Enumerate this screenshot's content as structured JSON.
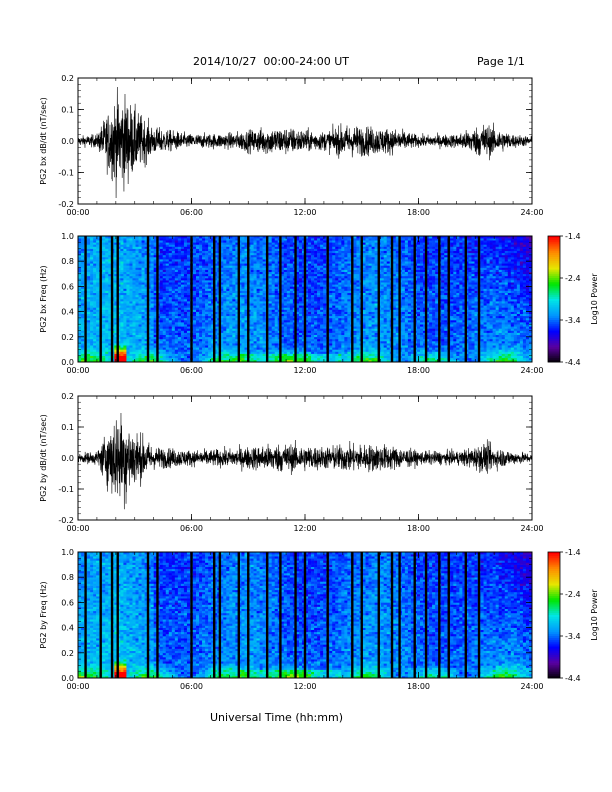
{
  "header": {
    "date_range": "2014/10/27  00:00-24:00 UT",
    "page": "Page 1/1"
  },
  "xaxis": {
    "title": "Universal Time (hh:mm)",
    "ticks": [
      "00:00",
      "06:00",
      "12:00",
      "18:00",
      "24:00"
    ]
  },
  "colorbar": {
    "label": "Log10 Power",
    "ticks": [
      "-1.4",
      "-2.4",
      "-3.4",
      "-4.4"
    ],
    "range": [
      -4.4,
      -1.4
    ],
    "colormap": [
      "#000000",
      "#5a00a0",
      "#0000ff",
      "#0096ff",
      "#00e6e6",
      "#00e600",
      "#e6e600",
      "#ff8c00",
      "#ff0000"
    ]
  },
  "chart_data": [
    {
      "type": "line",
      "panel": "bx-waveform",
      "ylabel": "PG2 bx dB/dt (nT/sec)",
      "xlim": [
        0,
        24
      ],
      "ylim": [
        -0.2,
        0.2
      ],
      "yticks": [
        "0.2",
        "0.1",
        "0.0",
        "-0.1",
        "-0.2"
      ],
      "envelope_hours": [
        0,
        1,
        2,
        2.5,
        3,
        4,
        6,
        8,
        10,
        11,
        13,
        14,
        16,
        17,
        18,
        20,
        21,
        21.5,
        22,
        23,
        24
      ],
      "envelope_amplitude": [
        0.02,
        0.03,
        0.2,
        0.2,
        0.14,
        0.06,
        0.03,
        0.035,
        0.06,
        0.06,
        0.04,
        0.07,
        0.06,
        0.05,
        0.025,
        0.03,
        0.06,
        0.08,
        0.06,
        0.03,
        0.02
      ]
    },
    {
      "type": "heatmap",
      "panel": "bx-spectrogram",
      "ylabel": "PG2 bx Freq (Hz)",
      "xlim": [
        0,
        24
      ],
      "ylim": [
        0,
        1.0
      ],
      "yticks": [
        "1.0",
        "0.8",
        "0.6",
        "0.4",
        "0.2",
        "0.0"
      ],
      "gap_hours": [
        0.4,
        1.2,
        1.8,
        2.1,
        3.7,
        4.2,
        6.0,
        7.2,
        7.5,
        8.5,
        9.0,
        10.0,
        10.7,
        11.5,
        12.0,
        13.2,
        14.5,
        15.0,
        15.9,
        16.6,
        17.0,
        17.8,
        18.4,
        19.1,
        19.6,
        20.5,
        21.2
      ]
    },
    {
      "type": "line",
      "panel": "by-waveform",
      "ylabel": "PG2 by dB/dt (nT/sec)",
      "xlim": [
        0,
        24
      ],
      "ylim": [
        -0.2,
        0.2
      ],
      "yticks": [
        "0.2",
        "0.1",
        "0.0",
        "-0.1",
        "-0.2"
      ],
      "envelope_hours": [
        0,
        1,
        2,
        2.5,
        3,
        4,
        6,
        8,
        10,
        11,
        13,
        14,
        16,
        17,
        18,
        20,
        21,
        21.5,
        22,
        23,
        24
      ],
      "envelope_amplitude": [
        0.02,
        0.03,
        0.2,
        0.2,
        0.13,
        0.05,
        0.035,
        0.04,
        0.06,
        0.065,
        0.05,
        0.06,
        0.06,
        0.05,
        0.03,
        0.03,
        0.05,
        0.07,
        0.05,
        0.03,
        0.02
      ]
    },
    {
      "type": "heatmap",
      "panel": "by-spectrogram",
      "ylabel": "PG2 by Freq (Hz)",
      "xlim": [
        0,
        24
      ],
      "ylim": [
        0,
        1.0
      ],
      "yticks": [
        "1.0",
        "0.8",
        "0.6",
        "0.4",
        "0.2",
        "0.0"
      ],
      "gap_hours": [
        0.4,
        1.2,
        1.8,
        2.1,
        3.7,
        4.2,
        6.0,
        7.2,
        7.5,
        8.5,
        9.0,
        10.0,
        10.7,
        11.5,
        12.0,
        13.2,
        14.5,
        15.0,
        15.9,
        16.6,
        17.0,
        17.8,
        18.4,
        19.1,
        19.6,
        20.5,
        21.2
      ]
    }
  ]
}
